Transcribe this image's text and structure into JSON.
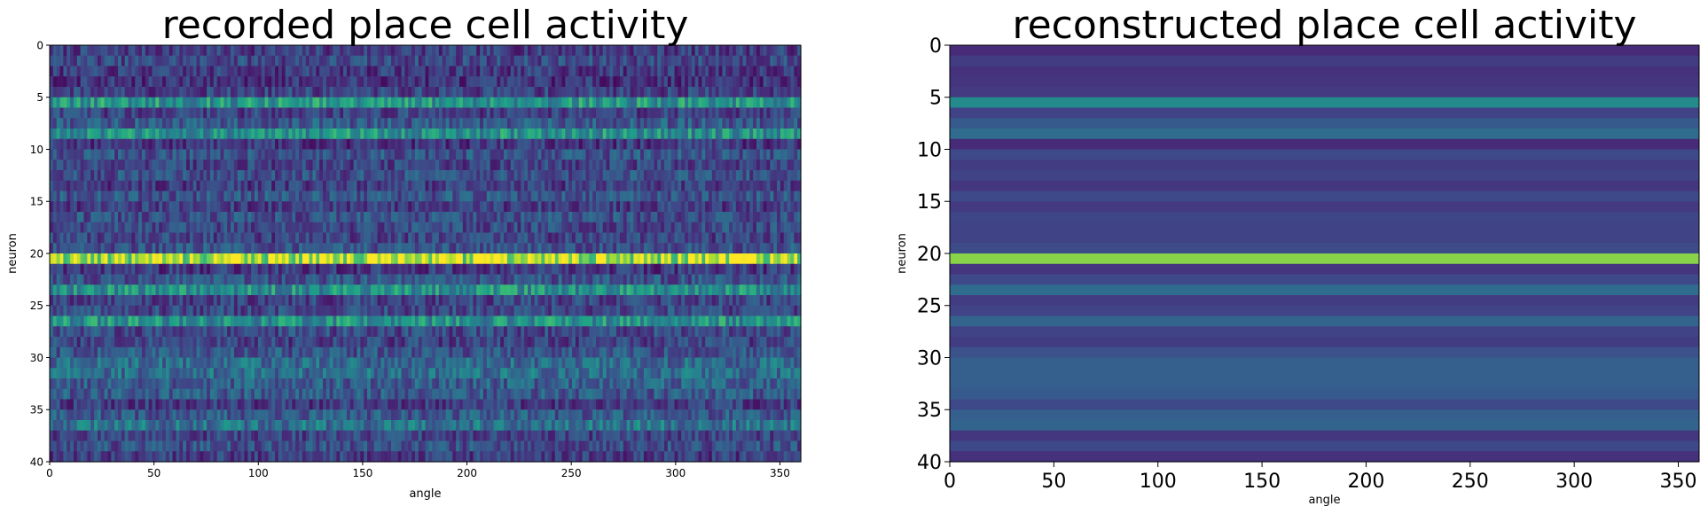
{
  "chart_data": [
    {
      "type": "heatmap",
      "title": "recorded place cell activity",
      "xlabel": "angle",
      "ylabel": "neuron",
      "xlim": [
        0,
        360
      ],
      "ylim": [
        40,
        0
      ],
      "xticks": [
        0,
        50,
        100,
        150,
        200,
        250,
        300,
        350
      ],
      "yticks": [
        0,
        5,
        10,
        15,
        20,
        25,
        30,
        35,
        40
      ],
      "colormap": "viridis",
      "noisy": true,
      "row_activity": [
        0.18,
        0.22,
        0.17,
        0.15,
        0.2,
        0.52,
        0.2,
        0.28,
        0.5,
        0.16,
        0.26,
        0.2,
        0.24,
        0.18,
        0.26,
        0.18,
        0.24,
        0.22,
        0.2,
        0.25,
        0.88,
        0.16,
        0.25,
        0.5,
        0.2,
        0.22,
        0.5,
        0.22,
        0.2,
        0.26,
        0.35,
        0.36,
        0.3,
        0.28,
        0.18,
        0.28,
        0.38,
        0.2,
        0.24,
        0.18
      ]
    },
    {
      "type": "heatmap",
      "title": "reconstructed place cell activity",
      "xlabel": "angle",
      "ylabel": "neuron",
      "xlim": [
        0,
        360
      ],
      "ylim": [
        40,
        0
      ],
      "xticks": [
        0,
        50,
        100,
        150,
        200,
        250,
        300,
        350
      ],
      "yticks": [
        0,
        5,
        10,
        15,
        20,
        25,
        30,
        35,
        40
      ],
      "colormap": "viridis",
      "noisy": false,
      "row_activity": [
        0.12,
        0.18,
        0.14,
        0.15,
        0.17,
        0.48,
        0.2,
        0.28,
        0.35,
        0.12,
        0.22,
        0.18,
        0.2,
        0.16,
        0.22,
        0.17,
        0.21,
        0.2,
        0.2,
        0.23,
        0.82,
        0.15,
        0.22,
        0.35,
        0.18,
        0.2,
        0.32,
        0.2,
        0.18,
        0.25,
        0.3,
        0.3,
        0.3,
        0.28,
        0.22,
        0.3,
        0.32,
        0.16,
        0.22,
        0.14
      ]
    }
  ]
}
